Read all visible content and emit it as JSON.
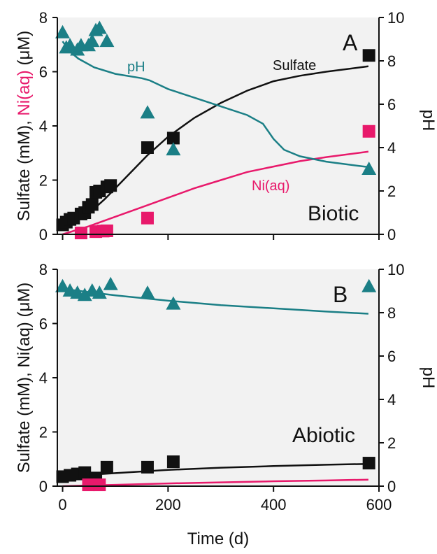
{
  "colors": {
    "sulfate": "#111111",
    "ni": "#e8196b",
    "ph": "#1b7f86",
    "ph_axis_title_B": "#1e8a4a",
    "plot_bg": "#f2f2f2"
  },
  "shared": {
    "xlabel": "Time (d)",
    "x_ticks": [
      "0",
      "200",
      "400",
      "600"
    ],
    "xlim": [
      -10,
      600
    ],
    "y_left_ticks": [
      "0",
      "2",
      "4",
      "6",
      "8"
    ],
    "y_right_ticks": [
      "0",
      "2",
      "4",
      "6",
      "8",
      "10"
    ]
  },
  "chart_data": [
    {
      "type": "scatter",
      "panel": "A",
      "letter": "A",
      "condition": "Biotic",
      "ylabel_parts": [
        "Sulfate (mM), ",
        "Ni(aq)",
        " (μM)"
      ],
      "ylim_left": [
        0,
        8
      ],
      "ylabel_right": "pH",
      "ylim_right": [
        0,
        10
      ],
      "line_labels": {
        "sulfate": "Sulfate",
        "ni": "Ni(aq)",
        "ph": "pH"
      },
      "series": [
        {
          "name": "Sulfate",
          "axis": "left",
          "marker": "square",
          "color": "#111111",
          "points": [
            [
              0,
              0.35
            ],
            [
              7,
              0.45
            ],
            [
              14,
              0.55
            ],
            [
              21,
              0.6
            ],
            [
              35,
              0.75
            ],
            [
              42,
              0.8
            ],
            [
              49,
              1.0
            ],
            [
              56,
              1.1
            ],
            [
              63,
              1.55
            ],
            [
              70,
              1.6
            ],
            [
              84,
              1.75
            ],
            [
              91,
              1.8
            ],
            [
              161,
              3.2
            ],
            [
              210,
              3.55
            ],
            [
              581,
              6.6
            ]
          ]
        },
        {
          "name": "Ni(aq)",
          "axis": "left",
          "marker": "square",
          "color": "#e8196b",
          "points": [
            [
              35,
              0.05
            ],
            [
              63,
              0.1
            ],
            [
              77,
              0.12
            ],
            [
              84,
              0.13
            ],
            [
              161,
              0.6
            ],
            [
              581,
              3.8
            ]
          ]
        },
        {
          "name": "pH",
          "axis": "right",
          "marker": "triangle",
          "color": "#1b7f86",
          "points": [
            [
              0,
              9.3
            ],
            [
              7,
              8.6
            ],
            [
              14,
              8.7
            ],
            [
              28,
              8.5
            ],
            [
              35,
              8.7
            ],
            [
              49,
              8.7
            ],
            [
              56,
              8.9
            ],
            [
              63,
              9.4
            ],
            [
              70,
              9.5
            ],
            [
              84,
              8.9
            ],
            [
              161,
              5.6
            ],
            [
              210,
              3.9
            ],
            [
              581,
              3.0
            ]
          ]
        }
      ],
      "fit_lines": [
        {
          "name": "Sulfate",
          "axis": "left",
          "color": "#111111",
          "points": [
            [
              0,
              0.3
            ],
            [
              20,
              0.45
            ],
            [
              40,
              0.65
            ],
            [
              60,
              0.95
            ],
            [
              80,
              1.3
            ],
            [
              100,
              1.7
            ],
            [
              130,
              2.3
            ],
            [
              160,
              2.9
            ],
            [
              200,
              3.6
            ],
            [
              250,
              4.3
            ],
            [
              300,
              4.85
            ],
            [
              350,
              5.3
            ],
            [
              400,
              5.65
            ],
            [
              450,
              5.85
            ],
            [
              500,
              6.0
            ],
            [
              580,
              6.2
            ]
          ]
        },
        {
          "name": "Ni(aq)",
          "axis": "left",
          "color": "#e8196b",
          "points": [
            [
              0,
              0.0
            ],
            [
              50,
              0.3
            ],
            [
              100,
              0.65
            ],
            [
              150,
              1.0
            ],
            [
              200,
              1.35
            ],
            [
              250,
              1.7
            ],
            [
              300,
              2.0
            ],
            [
              350,
              2.3
            ],
            [
              400,
              2.5
            ],
            [
              450,
              2.7
            ],
            [
              500,
              2.85
            ],
            [
              580,
              3.05
            ]
          ]
        },
        {
          "name": "pH",
          "axis": "right",
          "color": "#1b7f86",
          "points": [
            [
              0,
              8.9
            ],
            [
              15,
              8.4
            ],
            [
              30,
              8.1
            ],
            [
              60,
              7.7
            ],
            [
              100,
              7.4
            ],
            [
              150,
              7.2
            ],
            [
              165,
              7.1
            ],
            [
              200,
              6.7
            ],
            [
              250,
              6.3
            ],
            [
              300,
              5.9
            ],
            [
              350,
              5.5
            ],
            [
              380,
              5.1
            ],
            [
              400,
              4.4
            ],
            [
              420,
              3.9
            ],
            [
              450,
              3.6
            ],
            [
              500,
              3.35
            ],
            [
              580,
              3.1
            ]
          ]
        }
      ]
    },
    {
      "type": "scatter",
      "panel": "B",
      "letter": "B",
      "condition": "Abiotic",
      "ylabel_parts": [
        "Sulfate (mM), Ni(aq) (μM)"
      ],
      "ylim_left": [
        0,
        8
      ],
      "ylabel_right": "pH",
      "ylim_right": [
        0,
        10
      ],
      "series": [
        {
          "name": "Sulfate",
          "axis": "left",
          "marker": "square",
          "color": "#111111",
          "points": [
            [
              0,
              0.35
            ],
            [
              14,
              0.4
            ],
            [
              28,
              0.45
            ],
            [
              42,
              0.5
            ],
            [
              63,
              0.3
            ],
            [
              84,
              0.7
            ],
            [
              161,
              0.7
            ],
            [
              210,
              0.9
            ],
            [
              581,
              0.85
            ]
          ]
        },
        {
          "name": "Ni(aq)",
          "axis": "left",
          "marker": "square",
          "color": "#e8196b",
          "points": [
            [
              49,
              0.05
            ],
            [
              70,
              0.05
            ]
          ]
        },
        {
          "name": "pH",
          "axis": "right",
          "marker": "triangle",
          "color": "#1b7f86",
          "points": [
            [
              0,
              9.2
            ],
            [
              14,
              9.0
            ],
            [
              28,
              8.9
            ],
            [
              42,
              8.8
            ],
            [
              56,
              9.0
            ],
            [
              70,
              8.9
            ],
            [
              91,
              9.3
            ],
            [
              161,
              8.9
            ],
            [
              210,
              8.4
            ],
            [
              581,
              9.2
            ]
          ]
        }
      ],
      "fit_lines": [
        {
          "name": "Sulfate",
          "axis": "left",
          "color": "#111111",
          "points": [
            [
              0,
              0.35
            ],
            [
              100,
              0.48
            ],
            [
              200,
              0.6
            ],
            [
              300,
              0.68
            ],
            [
              400,
              0.74
            ],
            [
              500,
              0.79
            ],
            [
              580,
              0.82
            ]
          ]
        },
        {
          "name": "Ni(aq)",
          "axis": "left",
          "color": "#e8196b",
          "points": [
            [
              0,
              0.0
            ],
            [
              100,
              0.05
            ],
            [
              200,
              0.1
            ],
            [
              300,
              0.14
            ],
            [
              400,
              0.18
            ],
            [
              500,
              0.21
            ],
            [
              580,
              0.24
            ]
          ]
        },
        {
          "name": "pH",
          "axis": "right",
          "color": "#1b7f86",
          "points": [
            [
              0,
              9.1
            ],
            [
              50,
              8.95
            ],
            [
              100,
              8.8
            ],
            [
              200,
              8.55
            ],
            [
              300,
              8.35
            ],
            [
              400,
              8.2
            ],
            [
              500,
              8.05
            ],
            [
              580,
              7.95
            ]
          ]
        }
      ]
    }
  ]
}
